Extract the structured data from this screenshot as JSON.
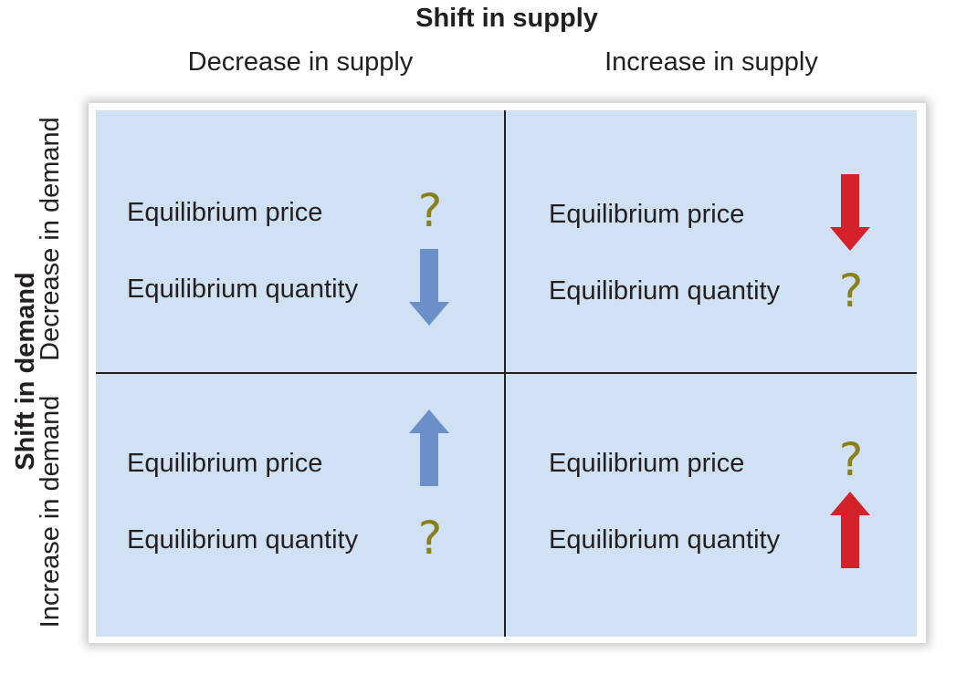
{
  "header": {
    "supply_title": "Shift in supply",
    "decrease_supply": "Decrease in supply",
    "increase_supply": "Increase in supply"
  },
  "side": {
    "demand_title": "Shift in demand",
    "decrease_demand": "Decrease in demand",
    "increase_demand": "Increase in demand"
  },
  "cells": {
    "top_left": {
      "price_label": "Equilibrium price",
      "quantity_label": "Equilibrium quantity",
      "price_indicator": "?",
      "quantity_indicator": "down-arrow-icon"
    },
    "top_right": {
      "price_label": "Equilibrium price",
      "quantity_label": "Equilibrium quantity",
      "price_indicator": "down-arrow-icon",
      "quantity_indicator": "?"
    },
    "bottom_left": {
      "price_label": "Equilibrium price",
      "quantity_label": "Equilibrium quantity",
      "price_indicator": "up-arrow-icon",
      "quantity_indicator": "?"
    },
    "bottom_right": {
      "price_label": "Equilibrium price",
      "quantity_label": "Equilibrium quantity",
      "price_indicator": "?",
      "quantity_indicator": "up-arrow-icon"
    }
  },
  "colors": {
    "cell_background": "#cfe1f2",
    "question_mark": "#8b7f1c",
    "blue_arrow": "#6b8fc9",
    "red_arrow": "#d3222a",
    "divider": "#231f20"
  }
}
